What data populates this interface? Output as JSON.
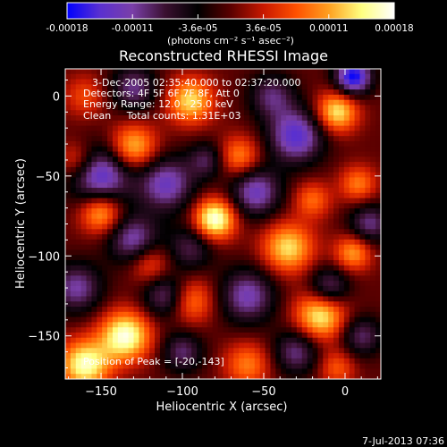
{
  "chart_data": {
    "type": "heatmap",
    "title": "Reconstructed RHESSI Image",
    "xlabel": "Heliocentric X (arcsec)",
    "ylabel": "Heliocentric Y (arcsec)",
    "xlim": [
      -172,
      22
    ],
    "ylim": [
      -177,
      17
    ],
    "xticks": [
      -150,
      -100,
      -50,
      0
    ],
    "yticks": [
      0,
      -50,
      -100,
      -150
    ],
    "colorbar": {
      "ticks": [
        "-0.00018",
        "-0.00011",
        "-3.6e-05",
        "3.6e-05",
        "0.00011",
        "0.00018"
      ],
      "label": "(photons cm⁻² s⁻¹ asec⁻²)",
      "range": [
        -0.00018,
        0.00018
      ],
      "colors": [
        "#0000ff",
        "#5a30d0",
        "#7a3fa8",
        "#3a1030",
        "#000000",
        "#5a0000",
        "#c81800",
        "#ff5000",
        "#ffa020",
        "#ffff80",
        "#ffffff"
      ]
    },
    "annotations": [
      "3-Dec-2005 02:35:40.000 to 02:37:20.000",
      "Detectors: 4F 5F 6F 7F 8F, Att 0",
      "Energy Range: 12.0 - 25.0 keV",
      "Clean     Total counts: 1.31E+03"
    ],
    "peak_label": "Position of Peak = [-20,-143]",
    "peak": [
      -20,
      -143
    ],
    "sources": [
      {
        "x": -80,
        "y": -77,
        "v": 1.0,
        "s": 9
      },
      {
        "x": -135,
        "y": -150,
        "v": 0.95,
        "s": 11
      },
      {
        "x": -160,
        "y": -168,
        "v": 0.9,
        "s": 11
      },
      {
        "x": -15,
        "y": -137,
        "v": 0.85,
        "s": 11
      },
      {
        "x": -5,
        "y": -10,
        "v": 0.8,
        "s": 9
      },
      {
        "x": -95,
        "y": -3,
        "v": 0.75,
        "s": 10
      },
      {
        "x": -35,
        "y": -95,
        "v": 0.75,
        "s": 11
      },
      {
        "x": -130,
        "y": -32,
        "v": 0.7,
        "s": 10
      },
      {
        "x": -150,
        "y": -73,
        "v": 0.7,
        "s": 9
      },
      {
        "x": 5,
        "y": -98,
        "v": 0.6,
        "s": 8
      },
      {
        "x": -95,
        "y": -128,
        "v": 0.55,
        "s": 10
      },
      {
        "x": -65,
        "y": -38,
        "v": 0.55,
        "s": 9
      },
      {
        "x": 8,
        "y": -55,
        "v": 0.5,
        "s": 8
      },
      {
        "x": -60,
        "y": -168,
        "v": 0.5,
        "s": 10
      },
      {
        "x": -120,
        "y": -105,
        "v": 0.45,
        "s": 9
      },
      {
        "x": -20,
        "y": -65,
        "v": 0.45,
        "s": 8
      },
      {
        "x": -165,
        "y": -40,
        "v": 0.4,
        "s": 8
      },
      {
        "x": -5,
        "y": -170,
        "v": 0.4,
        "s": 8
      },
      {
        "x": -160,
        "y": 0,
        "v": 0.35,
        "s": 9
      },
      {
        "x": 5,
        "y": 12,
        "v": -1.0,
        "s": 8
      },
      {
        "x": -150,
        "y": -50,
        "v": -0.8,
        "s": 13
      },
      {
        "x": -110,
        "y": -55,
        "v": -0.7,
        "s": 12
      },
      {
        "x": -30,
        "y": -25,
        "v": -0.8,
        "s": 12
      },
      {
        "x": -130,
        "y": -90,
        "v": -0.65,
        "s": 11
      },
      {
        "x": -55,
        "y": -60,
        "v": -0.7,
        "s": 11
      },
      {
        "x": -60,
        "y": -125,
        "v": -0.65,
        "s": 12
      },
      {
        "x": -110,
        "y": -125,
        "v": -0.6,
        "s": 10
      },
      {
        "x": -165,
        "y": -120,
        "v": -0.6,
        "s": 11
      },
      {
        "x": -10,
        "y": -120,
        "v": -0.6,
        "s": 9
      },
      {
        "x": -130,
        "y": 5,
        "v": -0.55,
        "s": 10
      },
      {
        "x": -45,
        "y": 0,
        "v": -0.5,
        "s": 10
      },
      {
        "x": 15,
        "y": -80,
        "v": -0.55,
        "s": 9
      },
      {
        "x": -100,
        "y": -160,
        "v": -0.5,
        "s": 9
      },
      {
        "x": -30,
        "y": -160,
        "v": -0.55,
        "s": 10
      },
      {
        "x": -95,
        "y": -95,
        "v": -0.45,
        "s": 10
      },
      {
        "x": 10,
        "y": -150,
        "v": -0.5,
        "s": 9
      },
      {
        "x": -85,
        "y": -40,
        "v": -0.45,
        "s": 8
      }
    ]
  },
  "footer": {
    "timestamp": "7-Jul-2013 07:36"
  }
}
